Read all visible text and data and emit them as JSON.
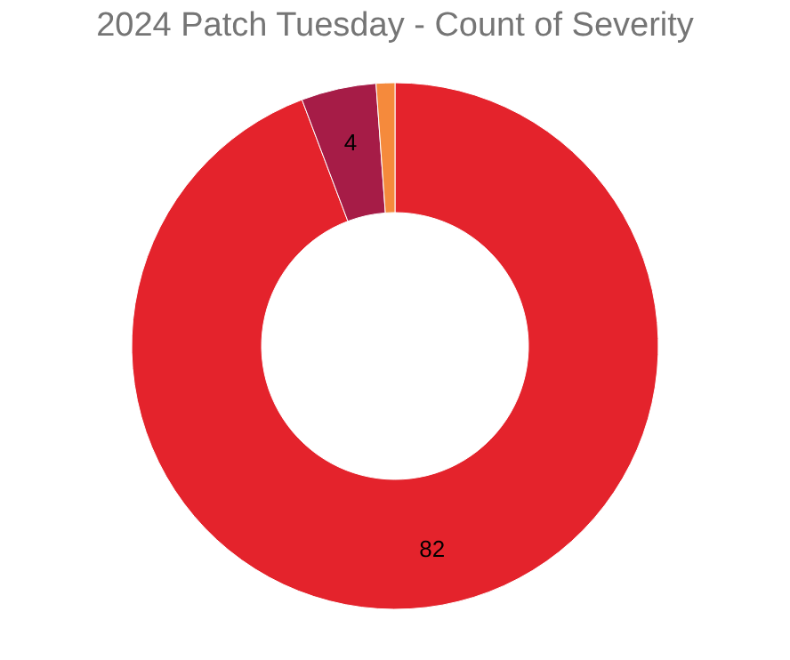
{
  "chart_data": {
    "type": "donut",
    "title": "2024 Patch Tuesday - Count of Severity",
    "categories": [
      null,
      null,
      null
    ],
    "values": [
      82,
      4,
      1
    ],
    "colors": [
      "#e4232c",
      "#a61c47",
      "#f58a3c"
    ],
    "value_labels": [
      "82",
      "4",
      null
    ],
    "legend": false
  }
}
